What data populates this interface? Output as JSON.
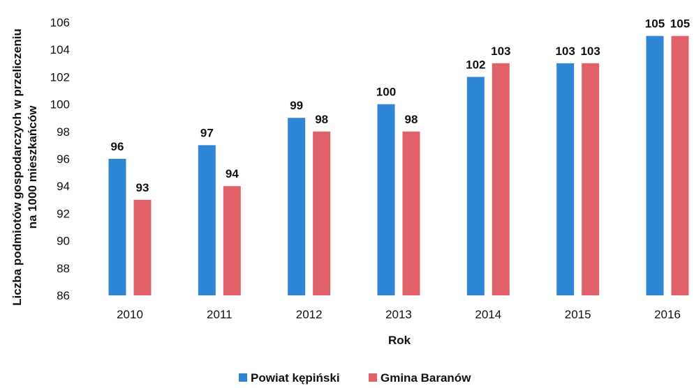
{
  "chart_data": {
    "type": "bar",
    "title": "",
    "xlabel": "Rok",
    "ylabel_line1": "Liczba podmiotów gospodarczych w przeliczeniu",
    "ylabel_line2": "na 1000 mieszkańców",
    "categories": [
      "2010",
      "2011",
      "2012",
      "2013",
      "2014",
      "2015",
      "2016"
    ],
    "series": [
      {
        "name": "Powiat kępiński",
        "color": "#2f86d6",
        "values": [
          96,
          97,
          99,
          100,
          102,
          103,
          105
        ]
      },
      {
        "name": "Gmina Baranów",
        "color": "#e06268",
        "values": [
          93,
          94,
          98,
          98,
          103,
          103,
          105
        ]
      }
    ],
    "ylim": [
      86,
      106
    ],
    "yticks": [
      86,
      88,
      90,
      92,
      94,
      96,
      98,
      100,
      102,
      104,
      106
    ],
    "grid": false,
    "legend_position": "bottom-center",
    "data_labels": true
  }
}
